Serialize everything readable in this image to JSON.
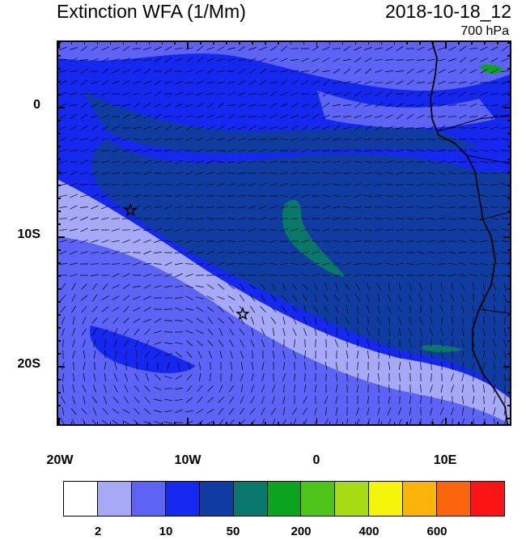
{
  "header": {
    "title": "Extinction WFA (1/Mm)",
    "datetime": "2018-10-18_12",
    "level": "700 hPa"
  },
  "map": {
    "lat_labels": [
      "0",
      "10S",
      "20S"
    ],
    "lon_labels": [
      "20W",
      "10W",
      "0",
      "10E"
    ],
    "extent": {
      "lon_min": -20,
      "lon_max": 15,
      "lat_min": -24.5,
      "lat_max": 5
    },
    "markers": [
      {
        "type": "star",
        "lon": -14.4,
        "lat": -8.0
      },
      {
        "type": "star",
        "lon": -5.7,
        "lat": -16.0
      }
    ],
    "wind_field": "wind barbs overlaid on entire domain"
  },
  "colorbar": {
    "colors": [
      "#ffffff",
      "#a6a9f5",
      "#5d63f5",
      "#1428f0",
      "#0f3ca0",
      "#07786a",
      "#0aa41e",
      "#4ec418",
      "#a6dc14",
      "#f5f50a",
      "#fab40a",
      "#fa640a",
      "#fa1414"
    ],
    "labels": [
      "2",
      "10",
      "50",
      "200",
      "400",
      "600"
    ]
  },
  "colors": {
    "bg_high": "#0f3ca0",
    "mid": "#1428f0",
    "low": "#5d63f5",
    "lowest": "#a6a9f5",
    "plume_peak": "#07786a",
    "land_speck": "#0aa41e"
  }
}
